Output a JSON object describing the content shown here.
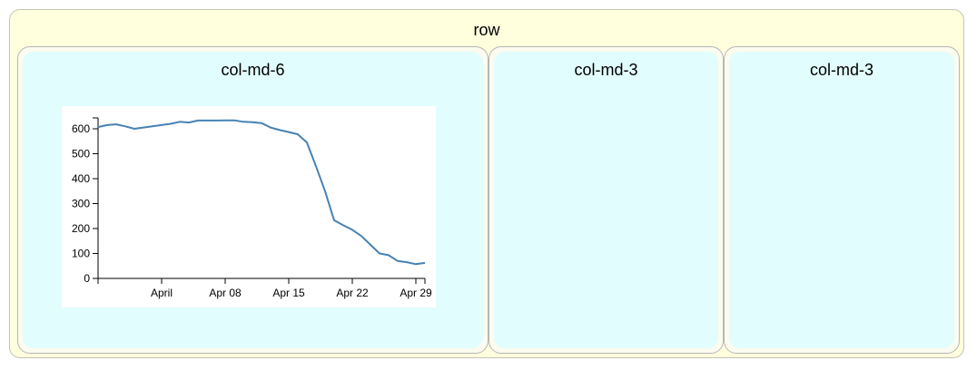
{
  "row": {
    "label": "row"
  },
  "columns": [
    {
      "label": "col-md-6"
    },
    {
      "label": "col-md-3"
    },
    {
      "label": "col-md-3"
    }
  ],
  "colors": {
    "row_background": "#ffffdd",
    "column_background": "#e2fdfd",
    "line": "#4682b4"
  },
  "chart_data": {
    "type": "line",
    "title": "",
    "xlabel": "",
    "ylabel": "",
    "x_ticks": [
      "April",
      "Apr 08",
      "Apr 15",
      "Apr 22",
      "Apr 29"
    ],
    "y_ticks": [
      0,
      100,
      200,
      300,
      400,
      500,
      600
    ],
    "ylim": [
      0,
      640
    ],
    "xlim": [
      "2020-03-25",
      "2020-04-30"
    ],
    "grid": false,
    "series": [
      {
        "x": [
          "2020-03-25",
          "2020-03-26",
          "2020-03-27",
          "2020-03-28",
          "2020-03-29",
          "2020-03-30",
          "2020-03-31",
          "2020-04-01",
          "2020-04-02",
          "2020-04-03",
          "2020-04-04",
          "2020-04-05",
          "2020-04-06",
          "2020-04-07",
          "2020-04-08",
          "2020-04-09",
          "2020-04-10",
          "2020-04-11",
          "2020-04-12",
          "2020-04-13",
          "2020-04-14",
          "2020-04-15",
          "2020-04-16",
          "2020-04-17",
          "2020-04-18",
          "2020-04-19",
          "2020-04-20",
          "2020-04-21",
          "2020-04-22",
          "2020-04-23",
          "2020-04-24",
          "2020-04-25",
          "2020-04-26",
          "2020-04-27",
          "2020-04-28",
          "2020-04-29",
          "2020-04-30"
        ],
        "y": [
          607,
          615,
          618,
          610,
          600,
          605,
          610,
          615,
          620,
          628,
          625,
          633,
          633,
          633,
          634,
          634,
          628,
          626,
          623,
          605,
          595,
          587,
          578,
          545,
          450,
          350,
          233,
          213,
          195,
          170,
          135,
          100,
          93,
          70,
          65,
          57,
          62
        ]
      }
    ]
  }
}
